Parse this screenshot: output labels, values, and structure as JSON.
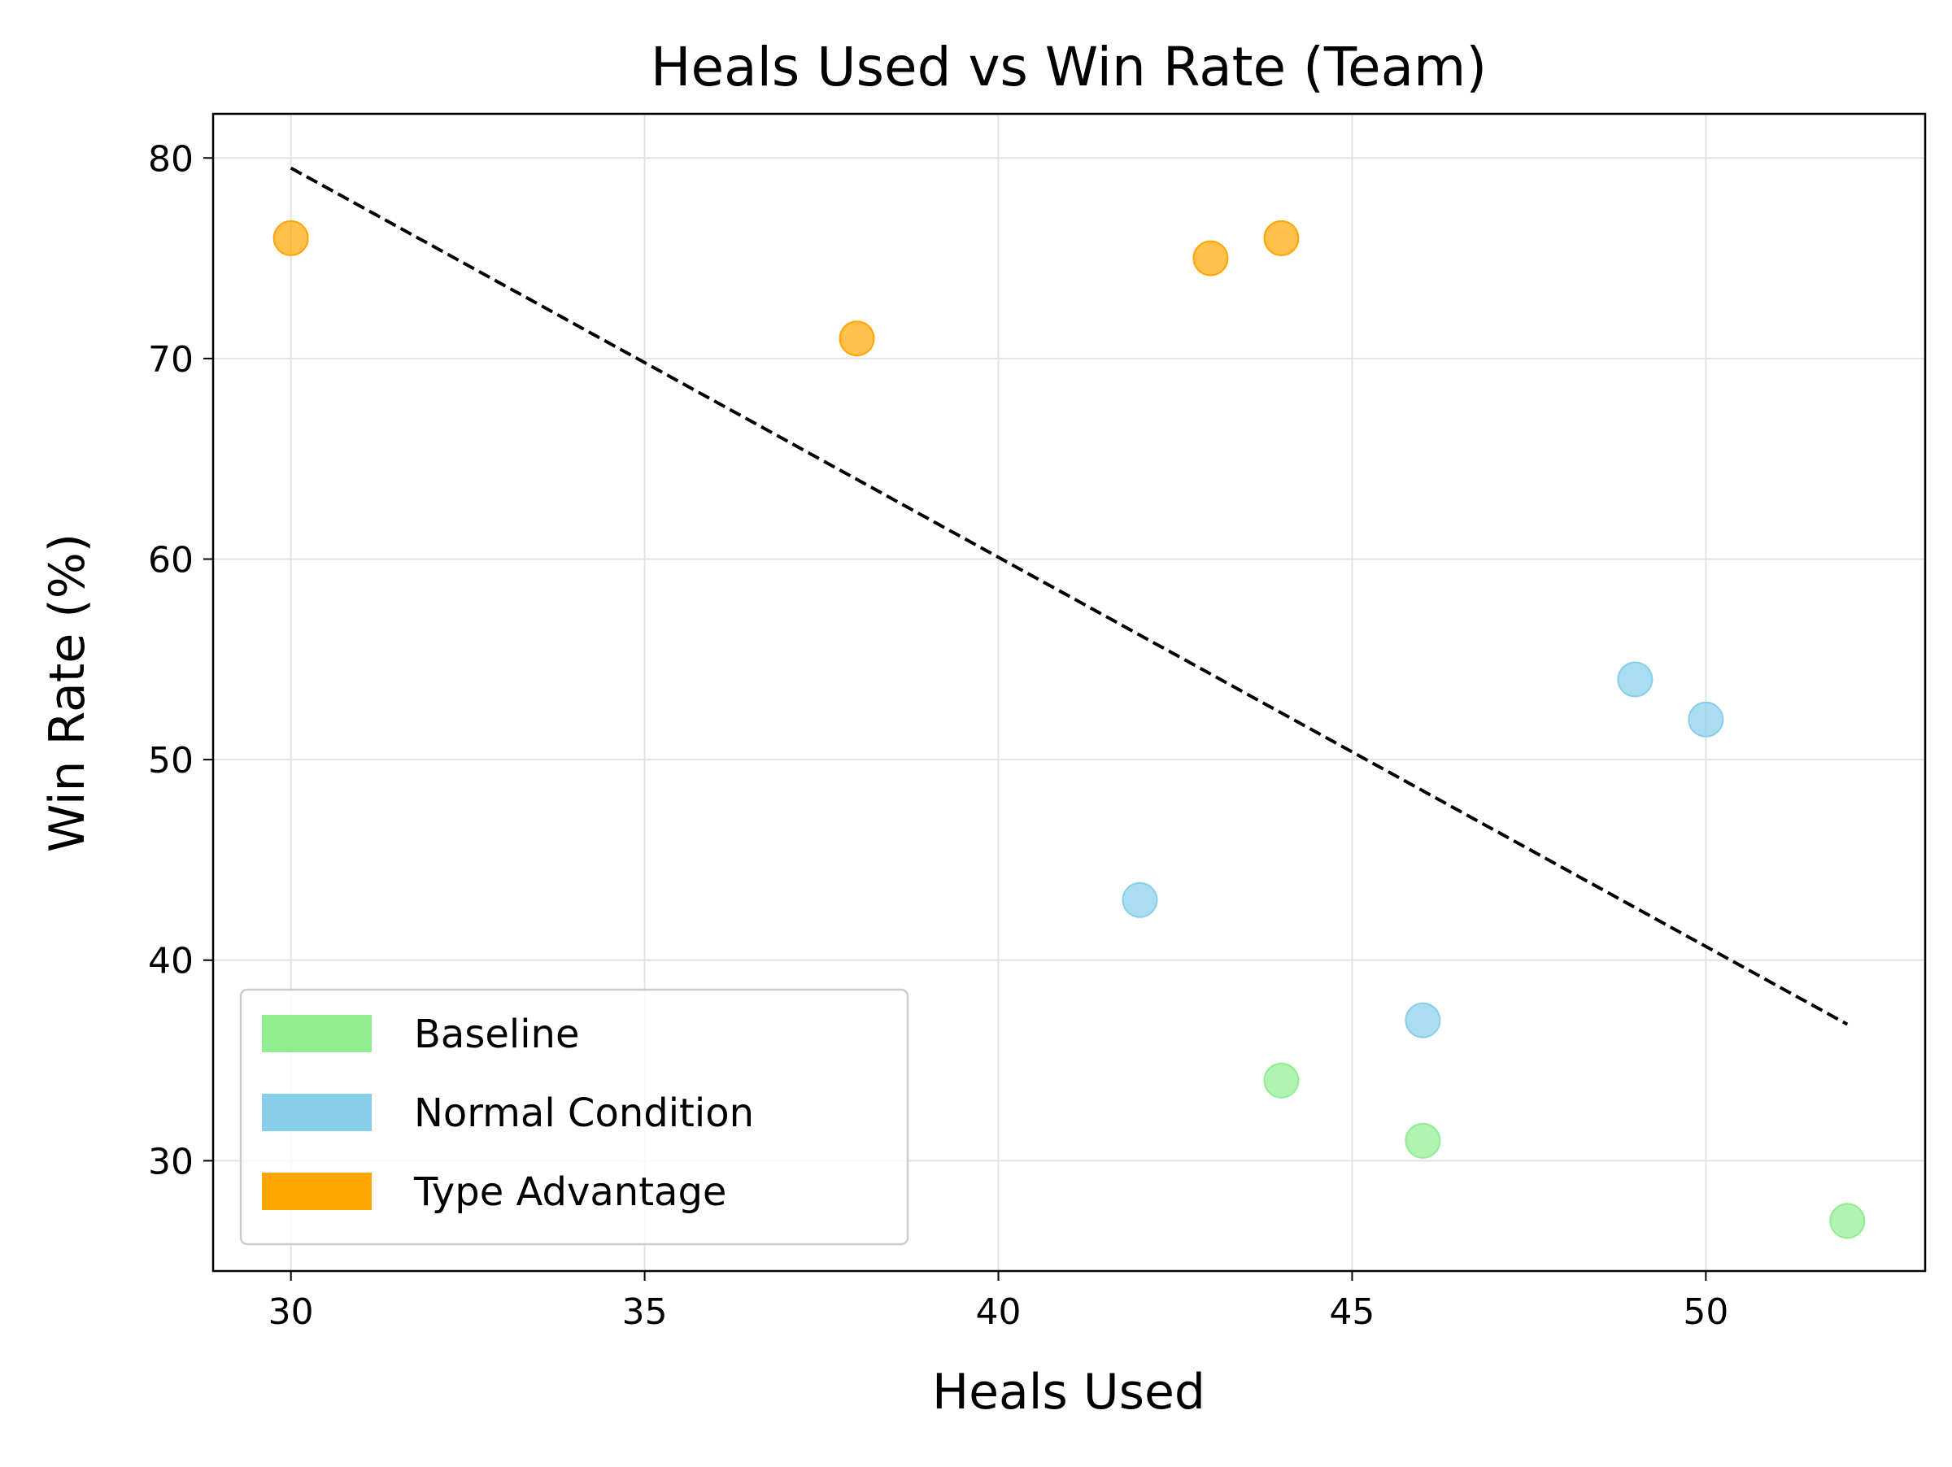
{
  "chart_data": {
    "type": "scatter",
    "title": "Heals Used vs Win Rate (Team)",
    "xlabel": "Heals Used",
    "ylabel": "Win Rate (%)",
    "xlim": [
      28.9,
      53.1
    ],
    "ylim": [
      24.5,
      82.2
    ],
    "xticks": [
      30,
      35,
      40,
      45,
      50
    ],
    "yticks": [
      30,
      40,
      50,
      60,
      70,
      80
    ],
    "grid": true,
    "legend_position": "lower-left",
    "series": [
      {
        "name": "Baseline",
        "color": "#90ee90",
        "points": [
          {
            "x": 44,
            "y": 34
          },
          {
            "x": 46,
            "y": 31
          },
          {
            "x": 52,
            "y": 27
          }
        ]
      },
      {
        "name": "Normal Condition",
        "color": "#87ceeb",
        "points": [
          {
            "x": 42,
            "y": 43
          },
          {
            "x": 46,
            "y": 37
          },
          {
            "x": 49,
            "y": 54
          },
          {
            "x": 50,
            "y": 52
          }
        ]
      },
      {
        "name": "Type Advantage",
        "color": "#ffa500",
        "points": [
          {
            "x": 30,
            "y": 76
          },
          {
            "x": 38,
            "y": 71
          },
          {
            "x": 43,
            "y": 75
          },
          {
            "x": 44,
            "y": 76
          }
        ]
      }
    ],
    "trend_line": {
      "style": "dashed",
      "color": "#000000",
      "start": {
        "x": 30,
        "y": 79.5
      },
      "end": {
        "x": 52,
        "y": 36.8
      }
    }
  }
}
